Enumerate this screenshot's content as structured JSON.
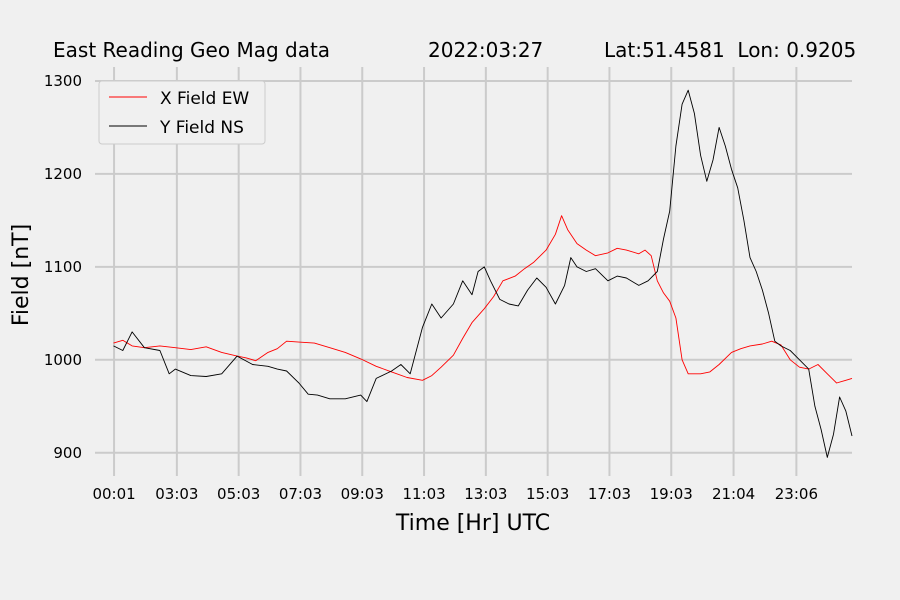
{
  "chart_data": {
    "type": "line",
    "title_parts": [
      "East Reading Geo Mag data",
      "2022:03:27",
      "Lat:51.4581  Lon: 0.9205"
    ],
    "xlabel": "Time  [Hr]  UTC",
    "ylabel": "Field  [nT]",
    "ylim": [
      875,
      1315
    ],
    "xlim": [
      -0.6,
      23.9
    ],
    "y_ticks": [
      900,
      1000,
      1100,
      1200,
      1300
    ],
    "x_ticks": [
      {
        "x": 0.0167,
        "label": "00:01"
      },
      {
        "x": 2.05,
        "label": "03:03"
      },
      {
        "x": 4.05,
        "label": "05:03"
      },
      {
        "x": 6.05,
        "label": "07:03"
      },
      {
        "x": 8.05,
        "label": "09:03"
      },
      {
        "x": 10.05,
        "label": "11:03"
      },
      {
        "x": 12.05,
        "label": "13:03"
      },
      {
        "x": 14.05,
        "label": "15:03"
      },
      {
        "x": 16.05,
        "label": "17:03"
      },
      {
        "x": 18.05,
        "label": "19:03"
      },
      {
        "x": 20.067,
        "label": "21:04"
      },
      {
        "x": 22.1,
        "label": "23:06"
      }
    ],
    "grid": true,
    "legend": "top-left",
    "series": [
      {
        "name": "X Field EW",
        "color": "#ff0000",
        "points": [
          [
            0,
            1018
          ],
          [
            0.3,
            1021
          ],
          [
            0.6,
            1015
          ],
          [
            1.0,
            1013
          ],
          [
            1.5,
            1015
          ],
          [
            2.0,
            1013
          ],
          [
            2.5,
            1011
          ],
          [
            3.0,
            1014
          ],
          [
            3.5,
            1008
          ],
          [
            4.0,
            1004
          ],
          [
            4.3,
            1002
          ],
          [
            4.6,
            999
          ],
          [
            5.0,
            1008
          ],
          [
            5.3,
            1012
          ],
          [
            5.6,
            1020
          ],
          [
            6.0,
            1019
          ],
          [
            6.5,
            1018
          ],
          [
            7.0,
            1013
          ],
          [
            7.5,
            1008
          ],
          [
            8.0,
            1001
          ],
          [
            8.5,
            993
          ],
          [
            9.0,
            987
          ],
          [
            9.5,
            981
          ],
          [
            10.0,
            978
          ],
          [
            10.3,
            983
          ],
          [
            10.6,
            992
          ],
          [
            11.0,
            1005
          ],
          [
            11.3,
            1023
          ],
          [
            11.6,
            1040
          ],
          [
            12.0,
            1055
          ],
          [
            12.3,
            1068
          ],
          [
            12.6,
            1085
          ],
          [
            13.0,
            1090
          ],
          [
            13.3,
            1098
          ],
          [
            13.6,
            1105
          ],
          [
            14.0,
            1118
          ],
          [
            14.3,
            1135
          ],
          [
            14.5,
            1155
          ],
          [
            14.7,
            1140
          ],
          [
            15.0,
            1125
          ],
          [
            15.3,
            1118
          ],
          [
            15.6,
            1112
          ],
          [
            16.0,
            1115
          ],
          [
            16.3,
            1120
          ],
          [
            16.6,
            1118
          ],
          [
            17.0,
            1114
          ],
          [
            17.2,
            1118
          ],
          [
            17.4,
            1112
          ],
          [
            17.6,
            1085
          ],
          [
            17.8,
            1072
          ],
          [
            18.0,
            1063
          ],
          [
            18.2,
            1045
          ],
          [
            18.4,
            1000
          ],
          [
            18.6,
            985
          ],
          [
            19.0,
            985
          ],
          [
            19.3,
            987
          ],
          [
            19.6,
            995
          ],
          [
            20.0,
            1008
          ],
          [
            20.3,
            1012
          ],
          [
            20.6,
            1015
          ],
          [
            21.0,
            1017
          ],
          [
            21.3,
            1020
          ],
          [
            21.6,
            1016
          ],
          [
            21.9,
            1000
          ],
          [
            22.2,
            992
          ],
          [
            22.5,
            990
          ],
          [
            22.8,
            995
          ],
          [
            23.1,
            985
          ],
          [
            23.4,
            975
          ],
          [
            23.7,
            978
          ],
          [
            23.9,
            980
          ]
        ]
      },
      {
        "name": "Y Field NS",
        "color": "#000000",
        "points": [
          [
            0,
            1015
          ],
          [
            0.3,
            1010
          ],
          [
            0.6,
            1030
          ],
          [
            1.0,
            1013
          ],
          [
            1.5,
            1010
          ],
          [
            1.8,
            985
          ],
          [
            2.0,
            990
          ],
          [
            2.5,
            983
          ],
          [
            3.0,
            982
          ],
          [
            3.5,
            985
          ],
          [
            4.0,
            1004
          ],
          [
            4.5,
            995
          ],
          [
            5.0,
            993
          ],
          [
            5.3,
            990
          ],
          [
            5.6,
            988
          ],
          [
            6.0,
            975
          ],
          [
            6.3,
            963
          ],
          [
            6.6,
            962
          ],
          [
            7.0,
            958
          ],
          [
            7.5,
            958
          ],
          [
            8.0,
            962
          ],
          [
            8.2,
            955
          ],
          [
            8.5,
            980
          ],
          [
            9.0,
            988
          ],
          [
            9.3,
            995
          ],
          [
            9.6,
            985
          ],
          [
            10.0,
            1035
          ],
          [
            10.3,
            1060
          ],
          [
            10.6,
            1045
          ],
          [
            11.0,
            1060
          ],
          [
            11.3,
            1085
          ],
          [
            11.6,
            1070
          ],
          [
            11.8,
            1095
          ],
          [
            12.0,
            1100
          ],
          [
            12.2,
            1085
          ],
          [
            12.5,
            1065
          ],
          [
            12.8,
            1060
          ],
          [
            13.1,
            1058
          ],
          [
            13.4,
            1075
          ],
          [
            13.7,
            1088
          ],
          [
            14.0,
            1078
          ],
          [
            14.3,
            1060
          ],
          [
            14.6,
            1080
          ],
          [
            14.8,
            1110
          ],
          [
            15.0,
            1100
          ],
          [
            15.3,
            1095
          ],
          [
            15.6,
            1098
          ],
          [
            16.0,
            1085
          ],
          [
            16.3,
            1090
          ],
          [
            16.6,
            1088
          ],
          [
            17.0,
            1080
          ],
          [
            17.3,
            1085
          ],
          [
            17.6,
            1095
          ],
          [
            17.8,
            1130
          ],
          [
            18.0,
            1160
          ],
          [
            18.2,
            1230
          ],
          [
            18.4,
            1275
          ],
          [
            18.6,
            1290
          ],
          [
            18.8,
            1265
          ],
          [
            19.0,
            1220
          ],
          [
            19.2,
            1192
          ],
          [
            19.4,
            1215
          ],
          [
            19.6,
            1250
          ],
          [
            19.8,
            1230
          ],
          [
            20.0,
            1205
          ],
          [
            20.2,
            1185
          ],
          [
            20.4,
            1150
          ],
          [
            20.6,
            1110
          ],
          [
            20.8,
            1095
          ],
          [
            21.0,
            1075
          ],
          [
            21.2,
            1050
          ],
          [
            21.4,
            1020
          ],
          [
            21.6,
            1015
          ],
          [
            21.9,
            1010
          ],
          [
            22.2,
            1000
          ],
          [
            22.5,
            990
          ],
          [
            22.7,
            950
          ],
          [
            22.9,
            925
          ],
          [
            23.1,
            895
          ],
          [
            23.3,
            920
          ],
          [
            23.5,
            960
          ],
          [
            23.7,
            945
          ],
          [
            23.9,
            918
          ]
        ]
      }
    ]
  }
}
